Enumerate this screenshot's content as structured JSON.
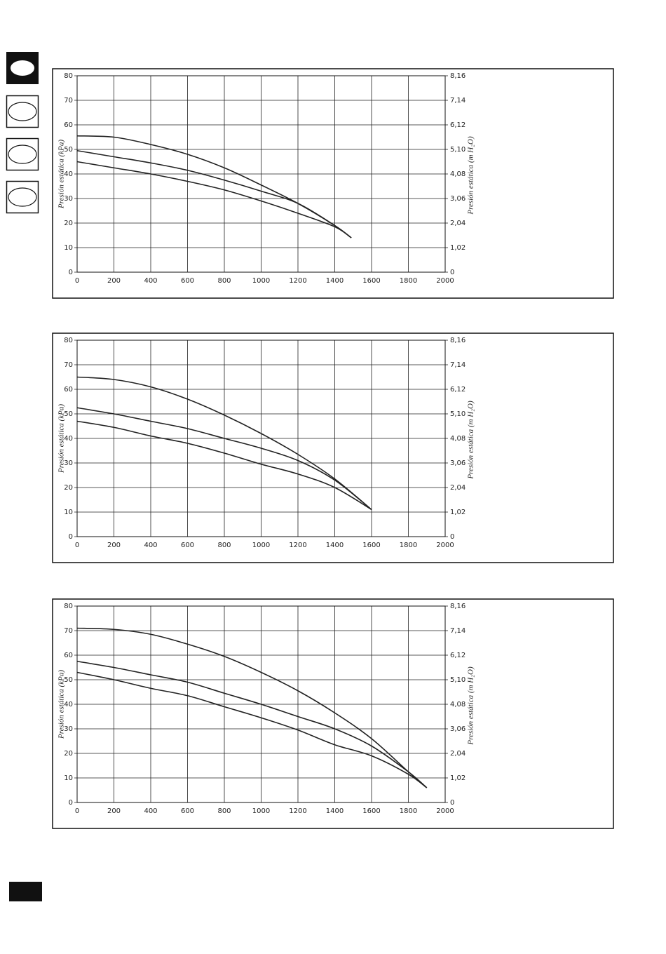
{
  "chart_data": [
    {
      "type": "line",
      "xlim": [
        0,
        2000
      ],
      "xticks": [
        0,
        200,
        400,
        600,
        800,
        1000,
        1200,
        1400,
        1600,
        1800,
        2000
      ],
      "ylim": [
        0,
        80
      ],
      "yticks": [
        0,
        10,
        20,
        30,
        40,
        50,
        60,
        70,
        80
      ],
      "y2lim": [
        0,
        8.16
      ],
      "y2ticks": [
        0,
        {
          "value": 1.02,
          "label": "1,02"
        },
        {
          "value": 2.04,
          "label": "2,04"
        },
        {
          "value": 3.06,
          "label": "3,06"
        },
        {
          "value": 4.08,
          "label": "4,08"
        },
        {
          "value": 5.1,
          "label": "5,10"
        },
        {
          "value": 6.12,
          "label": "6,12"
        },
        {
          "value": 7.14,
          "label": "7,14"
        },
        {
          "value": 8.16,
          "label": "8,16"
        }
      ],
      "ylabel": "Presión estática (kPa)",
      "y2label": "Presión estática (m H₂O)",
      "grid": true,
      "x": [
        0,
        200,
        400,
        600,
        800,
        1000,
        1200,
        1400,
        1490
      ],
      "series": [
        {
          "color": "#222222",
          "values": [
            55.5,
            55,
            52,
            48,
            42.5,
            35.5,
            28,
            19,
            14
          ]
        },
        {
          "color": "#222222",
          "values": [
            49.5,
            47,
            44.5,
            41.5,
            37.5,
            33,
            28,
            19,
            14
          ]
        },
        {
          "color": "#222222",
          "values": [
            45,
            42.5,
            40,
            37,
            33.5,
            29,
            24,
            18.5,
            14
          ]
        }
      ]
    },
    {
      "type": "line",
      "xlim": [
        0,
        2000
      ],
      "xticks": [
        0,
        200,
        400,
        600,
        800,
        1000,
        1200,
        1400,
        1600,
        1800,
        2000
      ],
      "ylim": [
        0,
        80
      ],
      "yticks": [
        0,
        10,
        20,
        30,
        40,
        50,
        60,
        70,
        80
      ],
      "y2lim": [
        0,
        8.16
      ],
      "y2ticks": [
        0,
        {
          "value": 1.02,
          "label": "1,02"
        },
        {
          "value": 2.04,
          "label": "2,04"
        },
        {
          "value": 3.06,
          "label": "3,06"
        },
        {
          "value": 4.08,
          "label": "4,08"
        },
        {
          "value": 5.1,
          "label": "5,10"
        },
        {
          "value": 6.12,
          "label": "6,12"
        },
        {
          "value": 7.14,
          "label": "7,14"
        },
        {
          "value": 8.16,
          "label": "8,16"
        }
      ],
      "ylabel": "Presión estática (kPa)",
      "y2label": "Presión estática (m H₂O)",
      "grid": true,
      "x": [
        0,
        200,
        400,
        600,
        800,
        1000,
        1200,
        1400,
        1600
      ],
      "series": [
        {
          "color": "#222222",
          "values": [
            65,
            64,
            61,
            56,
            49.5,
            42,
            33.5,
            23.5,
            11
          ]
        },
        {
          "color": "#222222",
          "values": [
            52.5,
            50,
            47,
            44,
            40,
            36,
            31,
            23,
            11
          ]
        },
        {
          "color": "#222222",
          "values": [
            47,
            44.5,
            41,
            38,
            34,
            29.5,
            25.5,
            20,
            11
          ]
        }
      ]
    },
    {
      "type": "line",
      "xlim": [
        0,
        2000
      ],
      "xticks": [
        0,
        200,
        400,
        600,
        800,
        1000,
        1200,
        1400,
        1600,
        1800,
        2000
      ],
      "ylim": [
        0,
        80
      ],
      "yticks": [
        0,
        10,
        20,
        30,
        40,
        50,
        60,
        70,
        80
      ],
      "y2lim": [
        0,
        8.16
      ],
      "y2ticks": [
        0,
        {
          "value": 1.02,
          "label": "1,02"
        },
        {
          "value": 2.04,
          "label": "2,04"
        },
        {
          "value": 3.06,
          "label": "3,06"
        },
        {
          "value": 4.08,
          "label": "4,08"
        },
        {
          "value": 5.1,
          "label": "5,10"
        },
        {
          "value": 6.12,
          "label": "6,12"
        },
        {
          "value": 7.14,
          "label": "7,14"
        },
        {
          "value": 8.16,
          "label": "8,16"
        }
      ],
      "ylabel": "Presión estática (kPa)",
      "y2label": "Presión estática (m H₂O)",
      "grid": true,
      "x": [
        0,
        200,
        400,
        600,
        800,
        1000,
        1200,
        1400,
        1600,
        1800,
        1900
      ],
      "series": [
        {
          "color": "#222222",
          "values": [
            71,
            70.5,
            68.5,
            64.5,
            59.5,
            53,
            45.5,
            36.5,
            26,
            12.5,
            6
          ]
        },
        {
          "color": "#222222",
          "values": [
            57.5,
            55,
            52,
            49,
            44.5,
            40,
            35,
            30,
            23,
            12.5,
            6
          ]
        },
        {
          "color": "#222222",
          "values": [
            53,
            50,
            46.5,
            43.5,
            39,
            34.5,
            29.5,
            23.5,
            19,
            11.5,
            6
          ]
        }
      ]
    }
  ]
}
